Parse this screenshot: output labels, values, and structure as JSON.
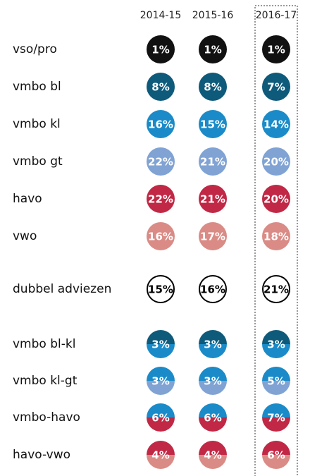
{
  "chart_data": {
    "type": "dot-table",
    "columns": [
      "2014-15",
      "2015-16",
      "2016-17"
    ],
    "rows": [
      {
        "name": "vso/pro",
        "values": [
          1,
          1,
          1
        ],
        "value_labels": [
          "1%",
          "1%",
          "1%"
        ],
        "colors": [
          "#111111"
        ]
      },
      {
        "name": "vmbo bl",
        "values": [
          8,
          8,
          7
        ],
        "value_labels": [
          "8%",
          "8%",
          "7%"
        ],
        "colors": [
          "#0e5a7b"
        ]
      },
      {
        "name": "vmbo kl",
        "values": [
          16,
          15,
          14
        ],
        "value_labels": [
          "16%",
          "15%",
          "14%"
        ],
        "colors": [
          "#1a8bc8"
        ]
      },
      {
        "name": "vmbo gt",
        "values": [
          22,
          21,
          20
        ],
        "value_labels": [
          "22%",
          "21%",
          "20%"
        ],
        "colors": [
          "#80a3d4"
        ]
      },
      {
        "name": "havo",
        "values": [
          22,
          21,
          20
        ],
        "value_labels": [
          "22%",
          "21%",
          "20%"
        ],
        "colors": [
          "#c12845"
        ]
      },
      {
        "name": "vwo",
        "values": [
          16,
          17,
          18
        ],
        "value_labels": [
          "16%",
          "17%",
          "18%"
        ],
        "colors": [
          "#da8b86"
        ]
      },
      {
        "name": "dubbel adviezen",
        "values": [
          15,
          16,
          21
        ],
        "value_labels": [
          "15%",
          "16%",
          "21%"
        ],
        "colors": [
          "#ffffff"
        ],
        "border": "#000000",
        "text_color": "#000000"
      },
      {
        "name": "vmbo bl-kl",
        "values": [
          3,
          3,
          3
        ],
        "value_labels": [
          "3%",
          "3%",
          "3%"
        ],
        "colors": [
          "#0e5a7b",
          "#1a8bc8"
        ]
      },
      {
        "name": "vmbo kl-gt",
        "values": [
          3,
          3,
          5
        ],
        "value_labels": [
          "3%",
          "3%",
          "5%"
        ],
        "colors": [
          "#1a8bc8",
          "#80a3d4"
        ]
      },
      {
        "name": "vmbo-havo",
        "values": [
          6,
          6,
          7
        ],
        "value_labels": [
          "6%",
          "6%",
          "7%"
        ],
        "colors": [
          "#1a8bc8",
          "#c12845"
        ]
      },
      {
        "name": "havo-vwo",
        "values": [
          4,
          4,
          6
        ],
        "value_labels": [
          "4%",
          "4%",
          "6%"
        ],
        "colors": [
          "#c12845",
          "#da8b86"
        ]
      }
    ],
    "highlight_column": 2
  }
}
